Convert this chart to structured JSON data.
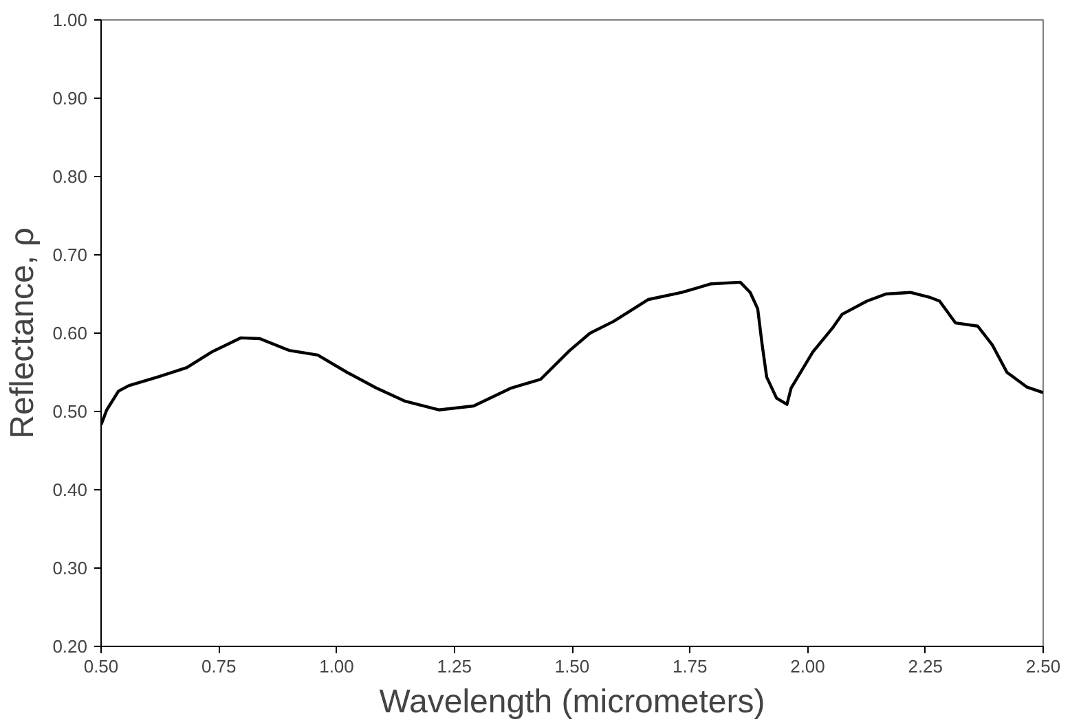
{
  "chart_data": {
    "type": "line",
    "xlabel": "Wavelength (micrometers)",
    "ylabel": "Reflectance, ρ",
    "xlim": [
      0.5,
      2.5
    ],
    "ylim": [
      0.2,
      1.0
    ],
    "xticks": [
      {
        "value": 0.5,
        "label": "0.50"
      },
      {
        "value": 0.75,
        "label": "0.75"
      },
      {
        "value": 1.0,
        "label": "1.00"
      },
      {
        "value": 1.25,
        "label": "1.25"
      },
      {
        "value": 1.5,
        "label": "1.50"
      },
      {
        "value": 1.75,
        "label": "1.75"
      },
      {
        "value": 2.0,
        "label": "2.00"
      },
      {
        "value": 2.25,
        "label": "2.25"
      },
      {
        "value": 2.5,
        "label": "2.50"
      }
    ],
    "yticks": [
      {
        "value": 0.2,
        "label": "0.20"
      },
      {
        "value": 0.3,
        "label": "0.30"
      },
      {
        "value": 0.4,
        "label": "0.40"
      },
      {
        "value": 0.5,
        "label": "0.50"
      },
      {
        "value": 0.6,
        "label": "0.60"
      },
      {
        "value": 0.7,
        "label": "0.70"
      },
      {
        "value": 0.8,
        "label": "0.80"
      },
      {
        "value": 0.9,
        "label": "0.90"
      },
      {
        "value": 1.0,
        "label": "1.00"
      }
    ],
    "grid": false,
    "marker": "none",
    "line_style": "solid",
    "series": [
      {
        "color": "#000000",
        "x": [
          0.5,
          0.512,
          0.537,
          0.559,
          0.62,
          0.682,
          0.735,
          0.797,
          0.837,
          0.899,
          0.96,
          1.022,
          1.084,
          1.146,
          1.217,
          1.291,
          1.371,
          1.433,
          1.495,
          1.538,
          1.588,
          1.662,
          1.733,
          1.795,
          1.857,
          1.878,
          1.894,
          1.903,
          1.913,
          1.934,
          1.956,
          1.965,
          2.011,
          2.052,
          2.073,
          2.126,
          2.166,
          2.218,
          2.258,
          2.28,
          2.314,
          2.361,
          2.392,
          2.423,
          2.466,
          2.5
        ],
        "values": [
          0.483,
          0.502,
          0.526,
          0.533,
          0.544,
          0.556,
          0.576,
          0.594,
          0.593,
          0.578,
          0.572,
          0.55,
          0.53,
          0.513,
          0.502,
          0.507,
          0.53,
          0.541,
          0.578,
          0.6,
          0.615,
          0.643,
          0.652,
          0.663,
          0.665,
          0.652,
          0.631,
          0.587,
          0.544,
          0.517,
          0.509,
          0.53,
          0.576,
          0.606,
          0.624,
          0.641,
          0.65,
          0.652,
          0.646,
          0.641,
          0.613,
          0.609,
          0.585,
          0.55,
          0.531,
          0.524
        ]
      }
    ]
  }
}
